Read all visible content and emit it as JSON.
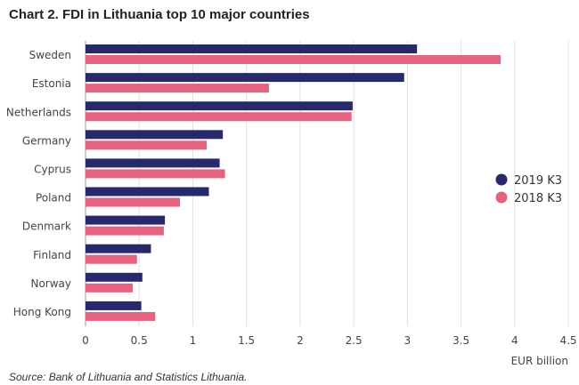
{
  "title": "Chart 2. FDI in Lithuania top 10 major countries",
  "source": "Source: Bank of Lithuania and Statistics Lithuania.",
  "colors": {
    "series_2019": "#27296b",
    "series_2018": "#e4637f",
    "grid": "#e0e0e0",
    "axis": "#999999"
  },
  "chart_data": {
    "type": "bar",
    "orientation": "horizontal",
    "categories": [
      "Sweden",
      "Estonia",
      "Netherlands",
      "Germany",
      "Cyprus",
      "Poland",
      "Denmark",
      "Finland",
      "Norway",
      "Hong Kong"
    ],
    "series": [
      {
        "name": "2019 K3",
        "color": "#27296b",
        "values": [
          3.09,
          2.97,
          2.49,
          1.28,
          1.25,
          1.15,
          0.74,
          0.61,
          0.53,
          0.52
        ]
      },
      {
        "name": "2018 K3",
        "color": "#e4637f",
        "values": [
          3.87,
          1.71,
          2.48,
          1.13,
          1.3,
          0.88,
          0.73,
          0.48,
          0.44,
          0.65
        ]
      }
    ],
    "xlabel": "EUR billion",
    "xlim": [
      0,
      4.5
    ],
    "xticks": [
      "0",
      "0.5",
      "1",
      "1.5",
      "2",
      "2.5",
      "3",
      "3.5",
      "4",
      "4.5"
    ],
    "grid": true,
    "legend_position": "right"
  }
}
